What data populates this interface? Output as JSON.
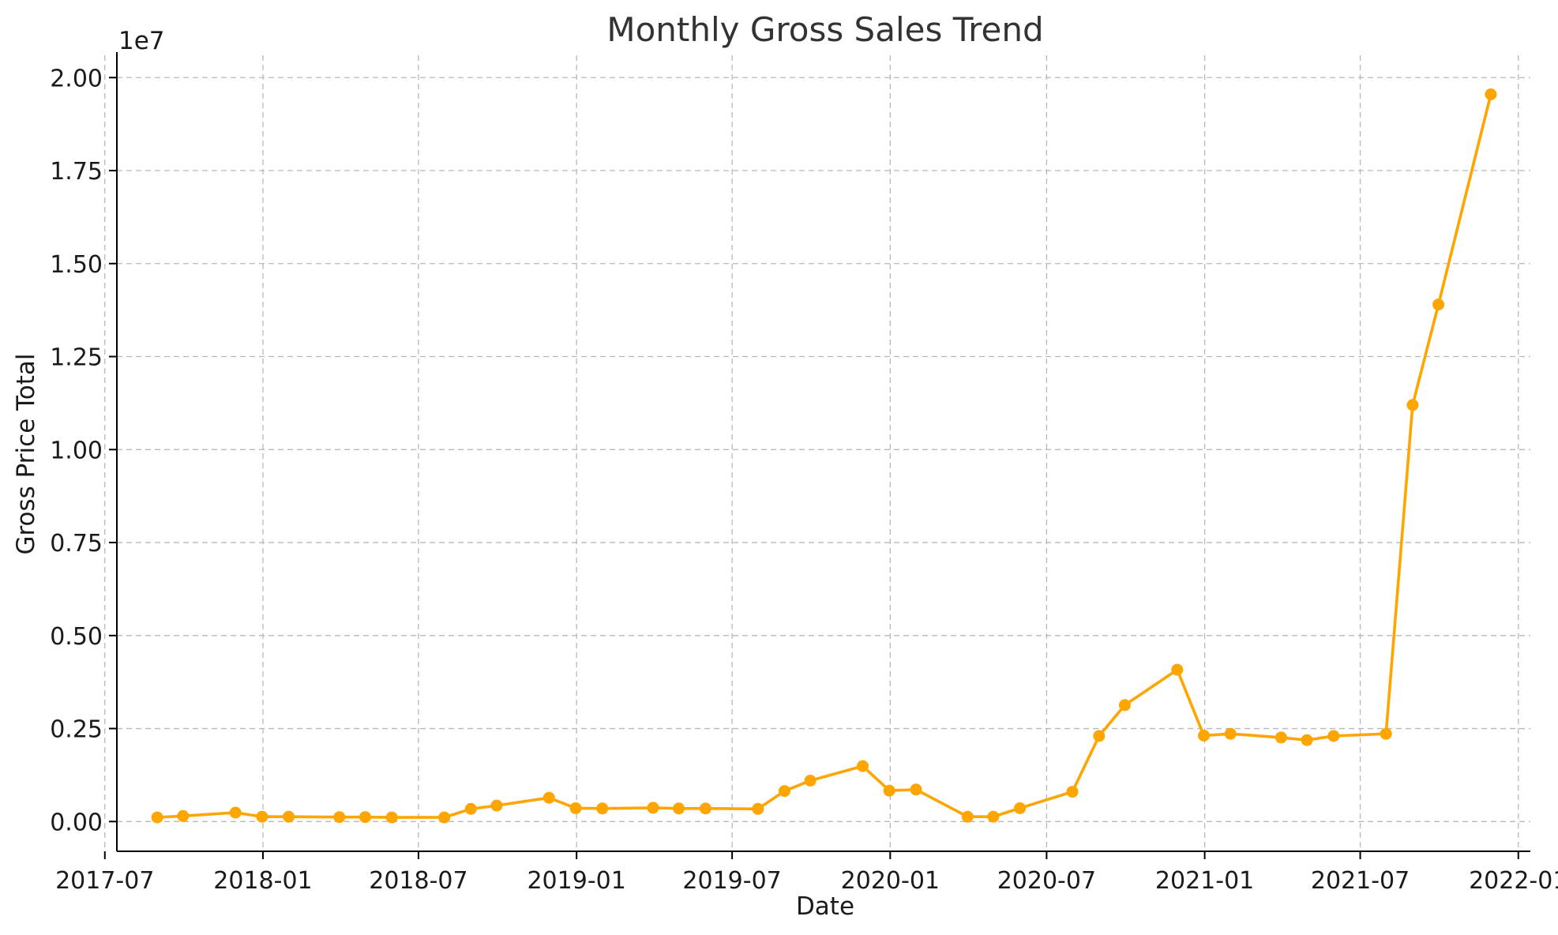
{
  "chart_data": {
    "type": "line",
    "title": "Monthly Gross Sales Trend",
    "xlabel": "Date",
    "ylabel": "Gross Price Total",
    "y_scale_label": "1e7",
    "x_range": [
      "2017-07-15",
      "2022-01-15"
    ],
    "ylim": [
      -0.08,
      2.06
    ],
    "x_ticks": [
      {
        "date": "2017-07-01",
        "label": "2017-07"
      },
      {
        "date": "2018-01-01",
        "label": "2018-01"
      },
      {
        "date": "2018-07-01",
        "label": "2018-07"
      },
      {
        "date": "2019-01-01",
        "label": "2019-01"
      },
      {
        "date": "2019-07-01",
        "label": "2019-07"
      },
      {
        "date": "2020-01-01",
        "label": "2020-01"
      },
      {
        "date": "2020-07-01",
        "label": "2020-07"
      },
      {
        "date": "2021-01-01",
        "label": "2021-01"
      },
      {
        "date": "2021-07-01",
        "label": "2021-07"
      },
      {
        "date": "2022-01-01",
        "label": "2022-01"
      }
    ],
    "y_ticks": [
      {
        "value": 0.0,
        "label": "0.00"
      },
      {
        "value": 0.25,
        "label": "0.25"
      },
      {
        "value": 0.5,
        "label": "0.50"
      },
      {
        "value": 0.75,
        "label": "0.75"
      },
      {
        "value": 1.0,
        "label": "1.00"
      },
      {
        "value": 1.25,
        "label": "1.25"
      },
      {
        "value": 1.5,
        "label": "1.50"
      },
      {
        "value": 1.75,
        "label": "1.75"
      },
      {
        "value": 2.0,
        "label": "2.00"
      }
    ],
    "grid": true,
    "series": [
      {
        "color": "#FFA500",
        "x": [
          "2017-08-31",
          "2017-09-30",
          "2017-11-30",
          "2017-12-31",
          "2018-01-31",
          "2018-03-31",
          "2018-04-30",
          "2018-05-31",
          "2018-07-31",
          "2018-08-31",
          "2018-09-30",
          "2018-11-30",
          "2018-12-31",
          "2019-01-31",
          "2019-03-31",
          "2019-04-30",
          "2019-05-31",
          "2019-07-31",
          "2019-08-31",
          "2019-09-30",
          "2019-11-30",
          "2019-12-31",
          "2020-01-31",
          "2020-03-31",
          "2020-04-30",
          "2020-05-31",
          "2020-07-31",
          "2020-08-31",
          "2020-09-30",
          "2020-11-30",
          "2020-12-31",
          "2021-01-31",
          "2021-03-31",
          "2021-04-30",
          "2021-05-31",
          "2021-07-31",
          "2021-08-31",
          "2021-09-30",
          "2021-11-30"
        ],
        "y": [
          0.011,
          0.015,
          0.024,
          0.013,
          0.013,
          0.012,
          0.012,
          0.011,
          0.011,
          0.034,
          0.043,
          0.064,
          0.036,
          0.035,
          0.037,
          0.035,
          0.035,
          0.034,
          0.082,
          0.11,
          0.149,
          0.083,
          0.086,
          0.013,
          0.013,
          0.036,
          0.08,
          0.23,
          0.313,
          0.408,
          0.231,
          0.236,
          0.226,
          0.219,
          0.23,
          0.236,
          1.12,
          1.39,
          1.955
        ]
      }
    ]
  }
}
